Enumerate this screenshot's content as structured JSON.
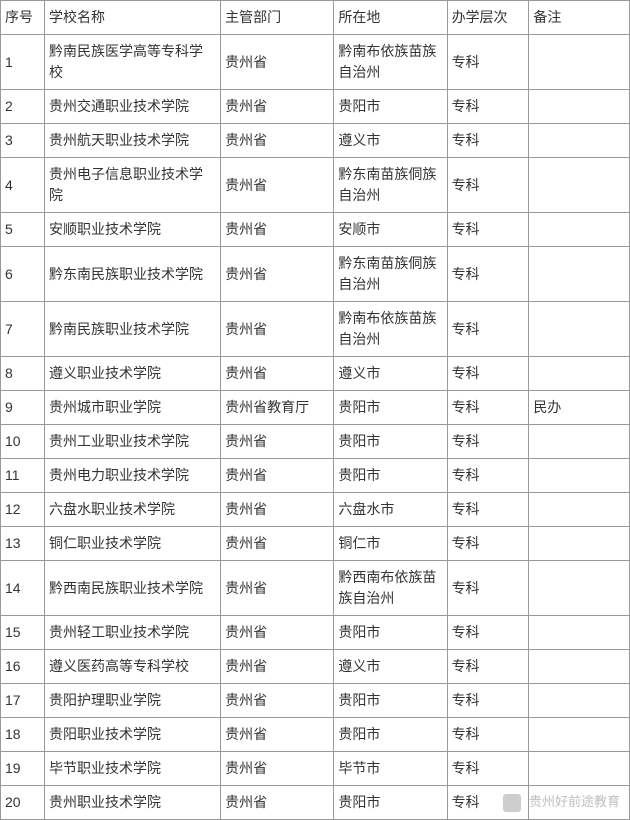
{
  "table": {
    "columns": [
      "序号",
      "学校名称",
      "主管部门",
      "所在地",
      "办学层次",
      "备注"
    ],
    "column_widths_pct": [
      7,
      28,
      18,
      18,
      13,
      16
    ],
    "rows": [
      [
        "1",
        "黔南民族医学高等专科学校",
        "贵州省",
        "黔南布依族苗族自治州",
        "专科",
        ""
      ],
      [
        "2",
        "贵州交通职业技术学院",
        "贵州省",
        "贵阳市",
        "专科",
        ""
      ],
      [
        "3",
        "贵州航天职业技术学院",
        "贵州省",
        "遵义市",
        "专科",
        ""
      ],
      [
        "4",
        "贵州电子信息职业技术学院",
        "贵州省",
        "黔东南苗族侗族自治州",
        "专科",
        ""
      ],
      [
        "5",
        "安顺职业技术学院",
        "贵州省",
        "安顺市",
        "专科",
        ""
      ],
      [
        "6",
        "黔东南民族职业技术学院",
        "贵州省",
        "黔东南苗族侗族自治州",
        "专科",
        ""
      ],
      [
        "7",
        "黔南民族职业技术学院",
        "贵州省",
        "黔南布依族苗族自治州",
        "专科",
        ""
      ],
      [
        "8",
        "遵义职业技术学院",
        "贵州省",
        "遵义市",
        "专科",
        ""
      ],
      [
        "9",
        "贵州城市职业学院",
        "贵州省教育厅",
        "贵阳市",
        "专科",
        "民办"
      ],
      [
        "10",
        "贵州工业职业技术学院",
        "贵州省",
        "贵阳市",
        "专科",
        ""
      ],
      [
        "11",
        "贵州电力职业技术学院",
        "贵州省",
        "贵阳市",
        "专科",
        ""
      ],
      [
        "12",
        "六盘水职业技术学院",
        "贵州省",
        "六盘水市",
        "专科",
        ""
      ],
      [
        "13",
        "铜仁职业技术学院",
        "贵州省",
        "铜仁市",
        "专科",
        ""
      ],
      [
        "14",
        "黔西南民族职业技术学院",
        "贵州省",
        "黔西南布依族苗族自治州",
        "专科",
        ""
      ],
      [
        "15",
        "贵州轻工职业技术学院",
        "贵州省",
        "贵阳市",
        "专科",
        ""
      ],
      [
        "16",
        "遵义医药高等专科学校",
        "贵州省",
        "遵义市",
        "专科",
        ""
      ],
      [
        "17",
        "贵阳护理职业学院",
        "贵州省",
        "贵阳市",
        "专科",
        ""
      ],
      [
        "18",
        "贵阳职业技术学院",
        "贵州省",
        "贵阳市",
        "专科",
        ""
      ],
      [
        "19",
        "毕节职业技术学院",
        "贵州省",
        "毕节市",
        "专科",
        ""
      ],
      [
        "20",
        "贵州职业技术学院",
        "贵州省",
        "贵阳市",
        "专科",
        ""
      ]
    ],
    "border_color": "#999999",
    "text_color": "#333333",
    "background_color": "#ffffff",
    "font_size": 14,
    "cell_padding": "6px 4px"
  },
  "watermark": {
    "text": "贵州好前途教育",
    "color": "#aaaaaa",
    "font_size": 13
  }
}
